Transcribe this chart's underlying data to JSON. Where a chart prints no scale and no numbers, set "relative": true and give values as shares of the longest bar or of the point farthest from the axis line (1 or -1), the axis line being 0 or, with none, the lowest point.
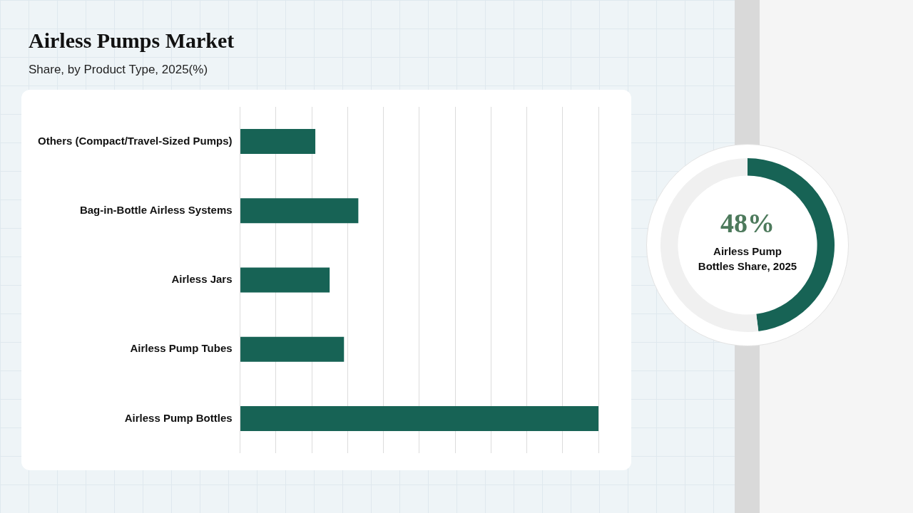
{
  "chart_data": [
    {
      "type": "bar",
      "title": "Airless Pumps Market",
      "subtitle": "Share, by Product Type, 2025(%)",
      "orientation": "horizontal",
      "relative": true,
      "grid": "x",
      "categories": [
        "Others (Compact/Travel-Sized Pumps)",
        "Bag-in-Bottle Airless Systems",
        "Airless Jars",
        "Airless Pump Tubes",
        "Airless Pump Bottles"
      ],
      "values": [
        0.21,
        0.33,
        0.25,
        0.29,
        1
      ],
      "color": "#176355"
    },
    {
      "type": "donut",
      "title": "Airless Pump Bottles Share, 2025",
      "categories": [
        null,
        null
      ],
      "values": [
        48,
        52
      ],
      "colors": [
        "#176355",
        "#f0f0f0"
      ],
      "value_labels": [
        "48%",
        null
      ]
    }
  ]
}
